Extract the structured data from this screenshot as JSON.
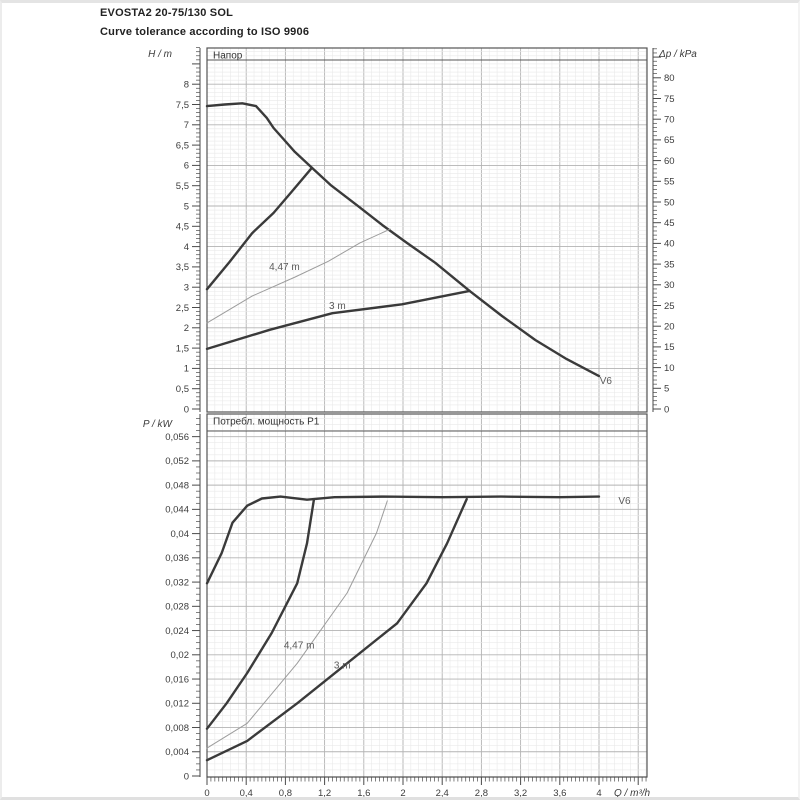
{
  "page": {
    "title": "EVOSTA2 20-75/130 SOL",
    "subtitle": "Curve tolerance according to ISO 9906"
  },
  "colors": {
    "curve": "#3a3a3a",
    "curve_thin": "#9c9c9c",
    "grid_minor": "#e9e9e9",
    "grid_major": "#b3b3b3",
    "axis": "#4a4a4a",
    "text": "#3c3c3c",
    "border": "#555555",
    "label": "#5a5a5a"
  },
  "chart_data": [
    {
      "type": "line",
      "title": "Напор",
      "ylabel_left": "H / m",
      "ylabel_right": "Δp / kPa",
      "xlabel": "",
      "xlim": [
        0,
        4.49
      ],
      "ylim_left": [
        0,
        8.95
      ],
      "ylim_right": [
        0,
        87
      ],
      "y_left": {
        "labeled": [
          0,
          0.5,
          1,
          1.5,
          2,
          2.5,
          3,
          3.5,
          4,
          4.5,
          5,
          5.5,
          6,
          6.5,
          7,
          7.5,
          8
        ],
        "labels": [
          "0",
          "0,5",
          "1",
          "1,5",
          "2",
          "2,5",
          "3",
          "3,5",
          "4",
          "4,5",
          "5",
          "5,5",
          "6",
          "6,5",
          "7",
          "7,5",
          "8"
        ]
      },
      "y_right": {
        "labeled": [
          0,
          5,
          10,
          15,
          20,
          25,
          30,
          35,
          40,
          45,
          50,
          55,
          60,
          65,
          70,
          75,
          80
        ],
        "labels": [
          "0",
          "5",
          "10",
          "15",
          "20",
          "25",
          "30",
          "35",
          "40",
          "45",
          "50",
          "55",
          "60",
          "65",
          "70",
          "75",
          "80"
        ]
      },
      "x_axis": {
        "labeled": [],
        "labels": []
      },
      "series": [
        {
          "id": "v6-head-curve",
          "label": "V6",
          "width": "thick",
          "points": [
            [
              0,
              7.46
            ],
            [
              0.18,
              7.5
            ],
            [
              0.36,
              7.53
            ],
            [
              0.5,
              7.46
            ],
            [
              0.61,
              7.17
            ],
            [
              0.68,
              6.92
            ],
            [
              0.78,
              6.65
            ],
            [
              0.89,
              6.35
            ],
            [
              1.07,
              5.94
            ],
            [
              1.26,
              5.52
            ],
            [
              1.53,
              5.02
            ],
            [
              1.79,
              4.53
            ],
            [
              2.04,
              4.09
            ],
            [
              2.33,
              3.6
            ],
            [
              2.68,
              2.91
            ],
            [
              3.01,
              2.29
            ],
            [
              3.35,
              1.7
            ],
            [
              3.67,
              1.23
            ],
            [
              4.0,
              0.81
            ]
          ]
        },
        {
          "id": "rising-limit-head",
          "label": "",
          "width": "thick",
          "points": [
            [
              0,
              2.95
            ],
            [
              0.23,
              3.62
            ],
            [
              0.46,
              4.33
            ],
            [
              0.68,
              4.83
            ],
            [
              0.87,
              5.37
            ],
            [
              1.07,
              5.94
            ]
          ]
        },
        {
          "id": "setpoint-4-47m-head",
          "label": "4,47 m",
          "width": "thin",
          "points": [
            [
              0,
              2.12
            ],
            [
              0.46,
              2.78
            ],
            [
              0.9,
              3.25
            ],
            [
              1.24,
              3.64
            ],
            [
              1.56,
              4.09
            ],
            [
              1.87,
              4.43
            ]
          ]
        },
        {
          "id": "setpoint-3m-head",
          "label": "3 m",
          "width": "thick",
          "points": [
            [
              0,
              1.48
            ],
            [
              0.64,
              1.95
            ],
            [
              1.28,
              2.36
            ],
            [
              1.99,
              2.58
            ],
            [
              2.68,
              2.91
            ]
          ]
        }
      ],
      "annotations": [
        {
          "text": "4,47 m",
          "x": 0.79,
          "y": 3.42
        },
        {
          "text": "3 m",
          "x": 1.33,
          "y": 2.46
        },
        {
          "text": "V6",
          "x": 4.07,
          "y": 0.62
        }
      ]
    },
    {
      "type": "line",
      "title": "Потребл. мощность P1",
      "ylabel_left": "P / kW",
      "xlabel": "Q / m³/h",
      "xlim": [
        0,
        4.49
      ],
      "ylim_left": [
        0,
        0.059
      ],
      "y_left": {
        "labeled": [
          0,
          0.004,
          0.008,
          0.012,
          0.016,
          0.02,
          0.024,
          0.028,
          0.032,
          0.036,
          0.04,
          0.044,
          0.048,
          0.052,
          0.056
        ],
        "labels": [
          "0",
          "0,004",
          "0,008",
          "0,012",
          "0,016",
          "0,02",
          "0,024",
          "0,028",
          "0,032",
          "0,036",
          "0,04",
          "0,044",
          "0,048",
          "0,052",
          "0,056"
        ]
      },
      "x_axis": {
        "labeled": [
          0,
          0.4,
          0.8,
          1.2,
          1.6,
          2,
          2.4,
          2.8,
          3.2,
          3.6,
          4
        ],
        "labels": [
          "0",
          "0,4",
          "0,8",
          "1,2",
          "1,6",
          "2",
          "2,4",
          "2,8",
          "3,2",
          "3,6",
          "4"
        ]
      },
      "series": [
        {
          "id": "v6-power-curve",
          "label": "V6",
          "width": "thick",
          "points": [
            [
              0,
              0.0318
            ],
            [
              0.15,
              0.0368
            ],
            [
              0.26,
              0.0418
            ],
            [
              0.41,
              0.0446
            ],
            [
              0.56,
              0.0458
            ],
            [
              0.75,
              0.0461
            ],
            [
              1.02,
              0.0456
            ],
            [
              1.3,
              0.046
            ],
            [
              1.8,
              0.0461
            ],
            [
              2.4,
              0.046
            ],
            [
              3.0,
              0.0461
            ],
            [
              3.6,
              0.046
            ],
            [
              4.0,
              0.0461
            ]
          ]
        },
        {
          "id": "rising-limit-power",
          "label": "",
          "width": "thick",
          "points": [
            [
              0,
              0.0078
            ],
            [
              0.2,
              0.012
            ],
            [
              0.41,
              0.017
            ],
            [
              0.66,
              0.0236
            ],
            [
              0.92,
              0.0318
            ],
            [
              1.02,
              0.0384
            ],
            [
              1.09,
              0.0455
            ]
          ]
        },
        {
          "id": "setpoint-4-47m-power",
          "label": "4,47 m",
          "width": "thin",
          "points": [
            [
              0,
              0.0046
            ],
            [
              0.41,
              0.0087
            ],
            [
              0.92,
              0.0186
            ],
            [
              1.43,
              0.0302
            ],
            [
              1.73,
              0.0401
            ],
            [
              1.84,
              0.0454
            ]
          ]
        },
        {
          "id": "setpoint-3m-power",
          "label": "3 m",
          "width": "thick",
          "points": [
            [
              0,
              0.0026
            ],
            [
              0.41,
              0.0058
            ],
            [
              0.92,
              0.012
            ],
            [
              1.43,
              0.0186
            ],
            [
              1.94,
              0.0252
            ],
            [
              2.24,
              0.0318
            ],
            [
              2.45,
              0.0384
            ],
            [
              2.65,
              0.0457
            ]
          ]
        }
      ],
      "annotations": [
        {
          "text": "4,47 m",
          "x": 0.94,
          "y": 0.021
        },
        {
          "text": "3 m",
          "x": 1.38,
          "y": 0.0177
        },
        {
          "text": "V6",
          "x": 4.26,
          "y": 0.0449
        }
      ]
    }
  ]
}
